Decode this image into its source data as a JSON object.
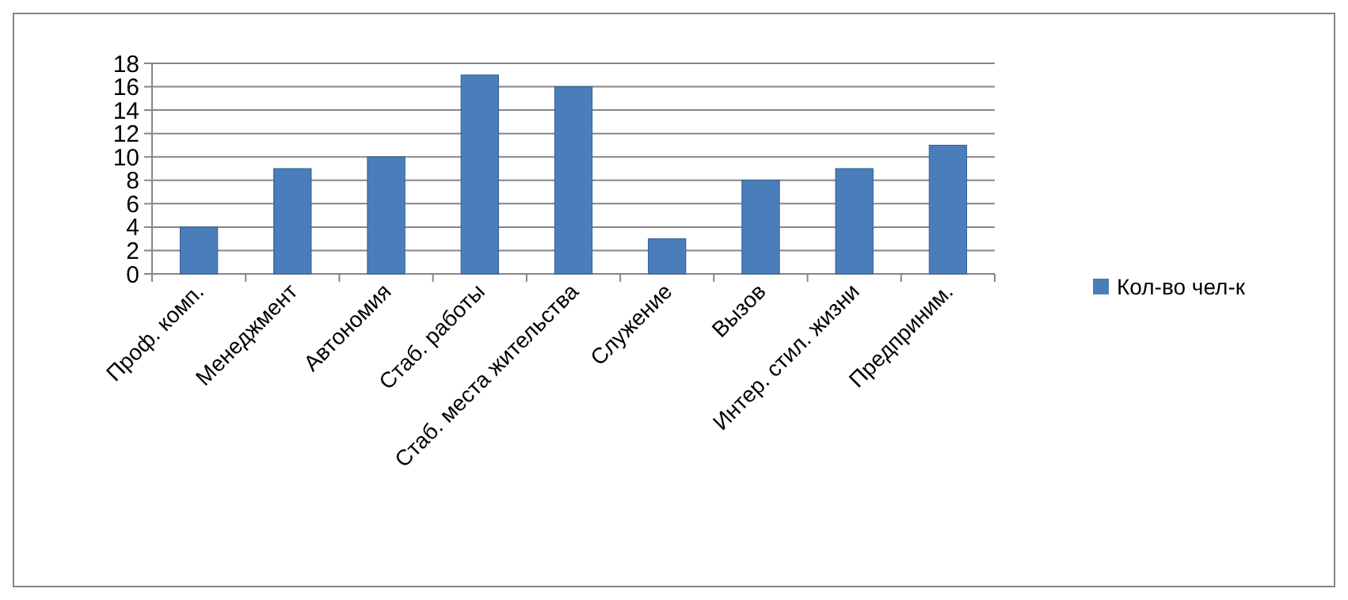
{
  "chart_data": {
    "type": "bar",
    "categories": [
      "Проф. комп.",
      "Менеджмент",
      "Автономия",
      "Стаб. работы",
      "Стаб. места жительства",
      "Служение",
      "Вызов",
      "Интер. стил. жизни",
      "Предприним."
    ],
    "series": [
      {
        "name": "Кол-во чел-к",
        "color": "#4a7ebb",
        "values": [
          4,
          9,
          10,
          17,
          16,
          3,
          8,
          9,
          11
        ]
      }
    ],
    "ylim": [
      0,
      18
    ],
    "yticks": [
      0,
      2,
      4,
      6,
      8,
      10,
      12,
      14,
      16,
      18
    ],
    "grid": "y",
    "legend": "right"
  }
}
